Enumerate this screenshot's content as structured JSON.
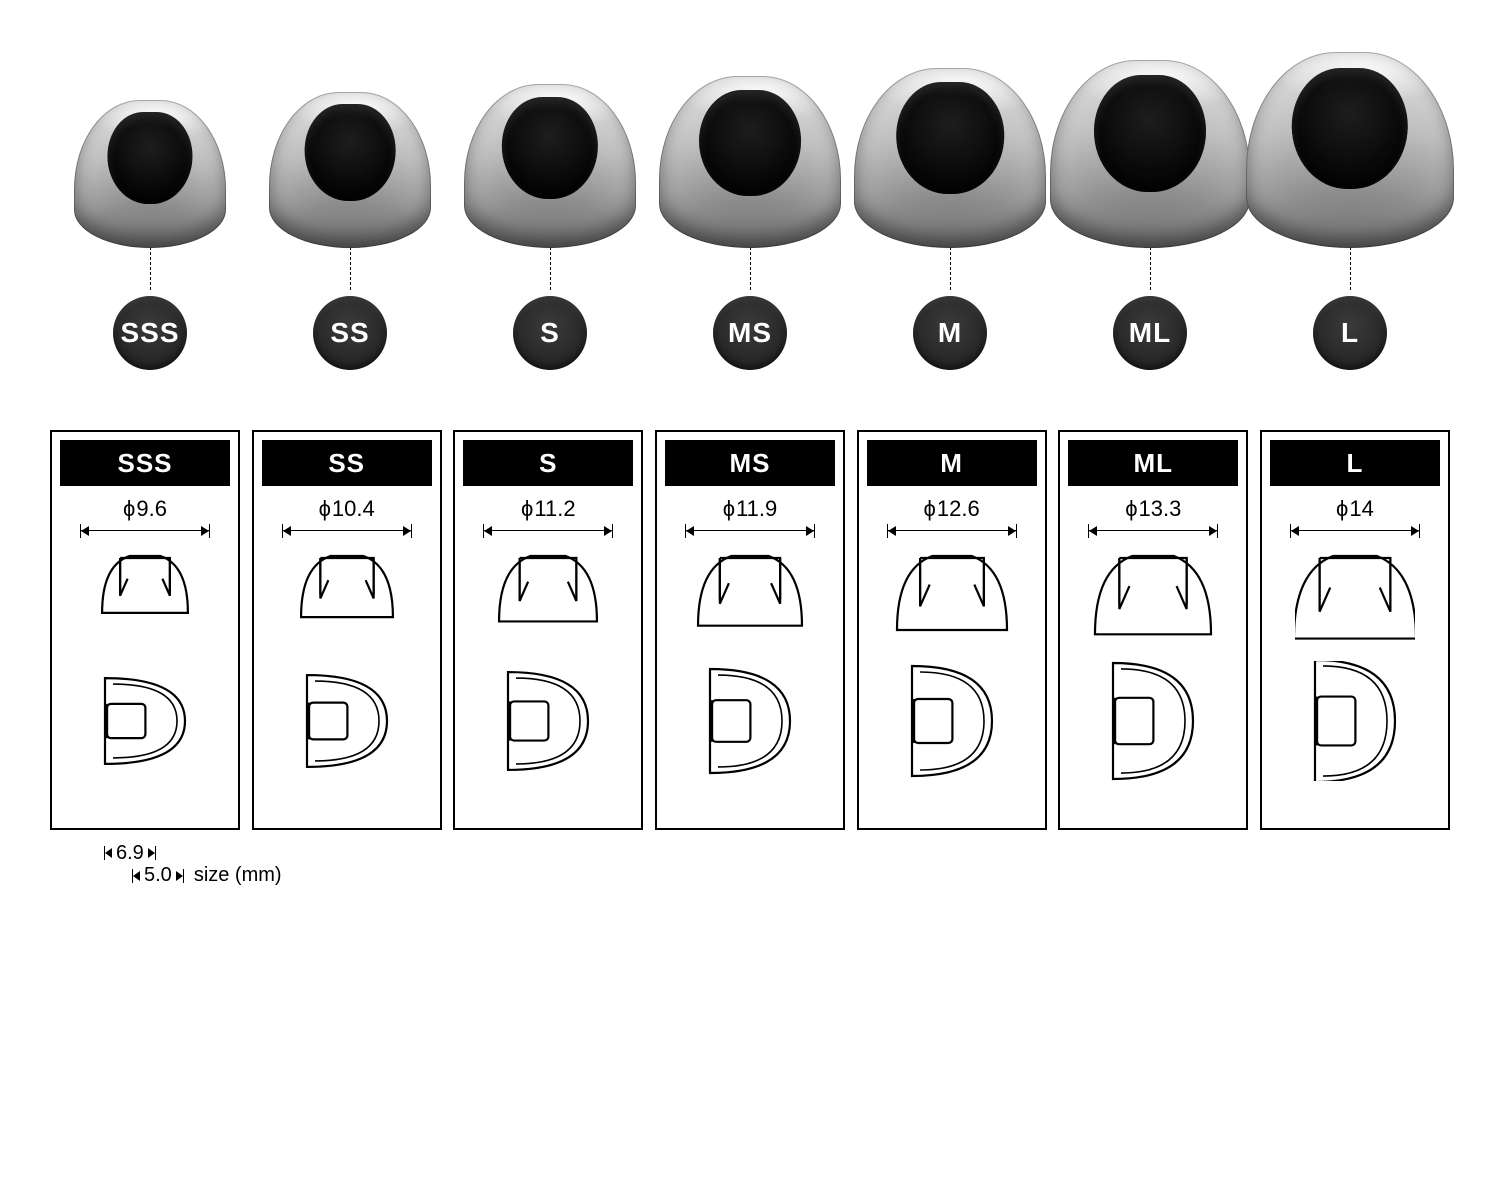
{
  "background_color": "#ffffff",
  "text_color": "#000000",
  "badge_bg": "#262626",
  "badge_text": "#ffffff",
  "header_bg": "#000000",
  "header_text": "#ffffff",
  "card_border": "#000000",
  "unit_label": "size (mm)",
  "legend_outer_width": "6.9",
  "legend_inner_width": "5.0",
  "sizes": [
    {
      "code": "SSS",
      "diameter": "9.6",
      "render_w": 152,
      "render_h": 148
    },
    {
      "code": "SS",
      "diameter": "10.4",
      "render_w": 162,
      "render_h": 156
    },
    {
      "code": "S",
      "diameter": "11.2",
      "render_w": 172,
      "render_h": 164
    },
    {
      "code": "MS",
      "diameter": "11.9",
      "render_w": 182,
      "render_h": 172
    },
    {
      "code": "M",
      "diameter": "12.6",
      "render_w": 192,
      "render_h": 180
    },
    {
      "code": "ML",
      "diameter": "13.3",
      "render_w": 200,
      "render_h": 188
    },
    {
      "code": "L",
      "diameter": "14",
      "render_w": 208,
      "render_h": 196
    }
  ]
}
